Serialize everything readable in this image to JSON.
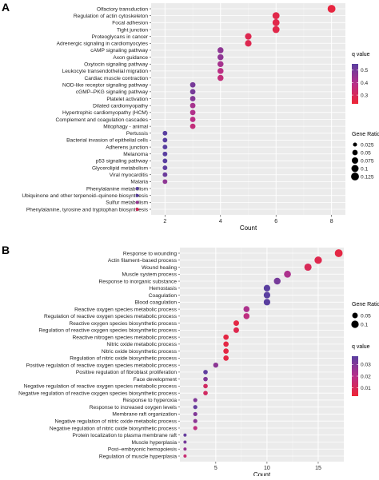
{
  "chart_data": [
    {
      "panel": "A",
      "type": "scatter",
      "xlabel": "Count",
      "ylabel": "",
      "xlim": [
        1.5,
        8.5
      ],
      "x_ticks": [
        2,
        4,
        6,
        8
      ],
      "grid": true,
      "legend_placement": "right",
      "color_legend": {
        "title": "q value",
        "ticks": [
          0.5,
          0.4,
          0.3
        ],
        "range": [
          0.23,
          0.55
        ],
        "high_color": "#6a3d9a",
        "low_color": "#e8253b"
      },
      "size_legend": {
        "title": "Gene Ratio",
        "values": [
          0.025,
          0.05,
          0.075,
          0.1,
          0.125
        ]
      },
      "categories": [
        "Olfactory transduction",
        "Regulation of actin cytoskeleton",
        "Focal adhesion",
        "Tight junction",
        "Proteoglycans in cancer",
        "Adrenergic signaling in cardiomyocytes",
        "cAMP signaling pathway",
        "Axon guidance",
        "Oxytocin signaling pathway",
        "Leukocyte transendothelial migration",
        "Cardiac muscle contraction",
        "NOD-like receptor signaling pathway",
        "cGMP–PKG signaling pathway",
        "Platelet activation",
        "Dilated cardiomyopathy",
        "Hypertrophic cardiomyopathy (HCM)",
        "Complement and coagulation cascades",
        "Mitophagy - animal",
        "Pertussis",
        "Bacterial invasion of epithelial cells",
        "Adherens junction",
        "Melanoma",
        "p53 signaling pathway",
        "Glycerolipid metabolism",
        "Viral myocarditis",
        "Malaria",
        "Phenylalanine metabolism",
        "Ubiquinone and other terpenoid–quinone biosynthesis",
        "Sulfur metabolism",
        "Phenylalanine, tyrosine and tryptophan biosynthesis"
      ],
      "x": [
        8,
        6,
        6,
        6,
        5,
        5,
        4,
        4,
        4,
        4,
        4,
        3,
        3,
        3,
        3,
        3,
        3,
        3,
        2,
        2,
        2,
        2,
        2,
        2,
        2,
        2,
        1,
        1,
        1,
        1
      ],
      "gene_ratio": [
        0.125,
        0.095,
        0.095,
        0.095,
        0.08,
        0.08,
        0.065,
        0.065,
        0.065,
        0.065,
        0.065,
        0.05,
        0.05,
        0.05,
        0.05,
        0.05,
        0.05,
        0.05,
        0.035,
        0.035,
        0.035,
        0.035,
        0.035,
        0.035,
        0.035,
        0.035,
        0.015,
        0.015,
        0.015,
        0.015
      ],
      "q_value": [
        0.25,
        0.27,
        0.27,
        0.27,
        0.28,
        0.28,
        0.46,
        0.46,
        0.42,
        0.38,
        0.36,
        0.5,
        0.5,
        0.48,
        0.42,
        0.4,
        0.38,
        0.36,
        0.55,
        0.55,
        0.55,
        0.55,
        0.55,
        0.54,
        0.52,
        0.46,
        0.55,
        0.55,
        0.45,
        0.3
      ]
    },
    {
      "panel": "B",
      "type": "scatter",
      "xlabel": "Count",
      "ylabel": "",
      "xlim": [
        1.5,
        17.5
      ],
      "x_ticks": [
        5,
        10,
        15
      ],
      "grid": true,
      "legend_placement": "right",
      "color_legend": {
        "title": "q value",
        "ticks": [
          0.03,
          0.02,
          0.01
        ],
        "range": [
          0.003,
          0.037
        ],
        "high_color": "#6a3d9a",
        "low_color": "#e8253b"
      },
      "size_legend": {
        "title": "Gene Ratio",
        "values": [
          0.05,
          0.1
        ]
      },
      "categories": [
        "Response to wounding",
        "Actin filament–based process",
        "Wound healing",
        "Muscle system process",
        "Response to inorganic substance",
        "Hemostasis",
        "Coagulation",
        "Blood coagulation",
        "Reactive oxygen species metabolic process",
        "Regulation of reactive oxygen species metabolic process",
        "Reactive oxygen species biosynthetic process",
        "Regulation of reactive oxygen species biosynthetic process",
        "Reactive nitrogen species metabolic process",
        "Nitric oxide metabolic process",
        "Nitric oxide biosynthetic process",
        "Regulation of nitric oxide biosynthetic process",
        "Positive regulation of reactive oxygen species metabolic process",
        "Positive regulation of fibroblast proliferation",
        "Face development",
        "Negative regulation of reactive oxygen species metabolic process",
        "Negative regulation of reactive oxygen species biosynthetic process",
        "Response to hyperoxia",
        "Response to increased oxygen levels",
        "Membrane raft organization",
        "Negative regulation of nitric oxide metabolic process",
        "Negative regulation of nitric oxide biosynthetic process",
        "Protein localization to plasma membrane raft",
        "Muscle hyperplasia",
        "Post–embryonic hemopoiesis",
        "Regulation of muscle hyperplasia"
      ],
      "x": [
        17,
        15,
        14,
        12,
        11,
        10,
        10,
        10,
        8,
        8,
        7,
        7,
        6,
        6,
        6,
        6,
        5,
        4,
        4,
        4,
        4,
        3,
        3,
        3,
        3,
        3,
        2,
        2,
        2,
        2
      ],
      "gene_ratio": [
        0.115,
        0.1,
        0.095,
        0.085,
        0.08,
        0.075,
        0.075,
        0.075,
        0.06,
        0.06,
        0.05,
        0.05,
        0.045,
        0.045,
        0.045,
        0.045,
        0.04,
        0.03,
        0.03,
        0.03,
        0.03,
        0.025,
        0.025,
        0.025,
        0.025,
        0.025,
        0.015,
        0.015,
        0.015,
        0.015
      ],
      "q_value": [
        0.006,
        0.008,
        0.01,
        0.022,
        0.032,
        0.037,
        0.037,
        0.037,
        0.022,
        0.018,
        0.006,
        0.008,
        0.006,
        0.006,
        0.006,
        0.006,
        0.028,
        0.036,
        0.03,
        0.012,
        0.012,
        0.03,
        0.035,
        0.03,
        0.028,
        0.018,
        0.035,
        0.032,
        0.026,
        0.015
      ]
    }
  ]
}
